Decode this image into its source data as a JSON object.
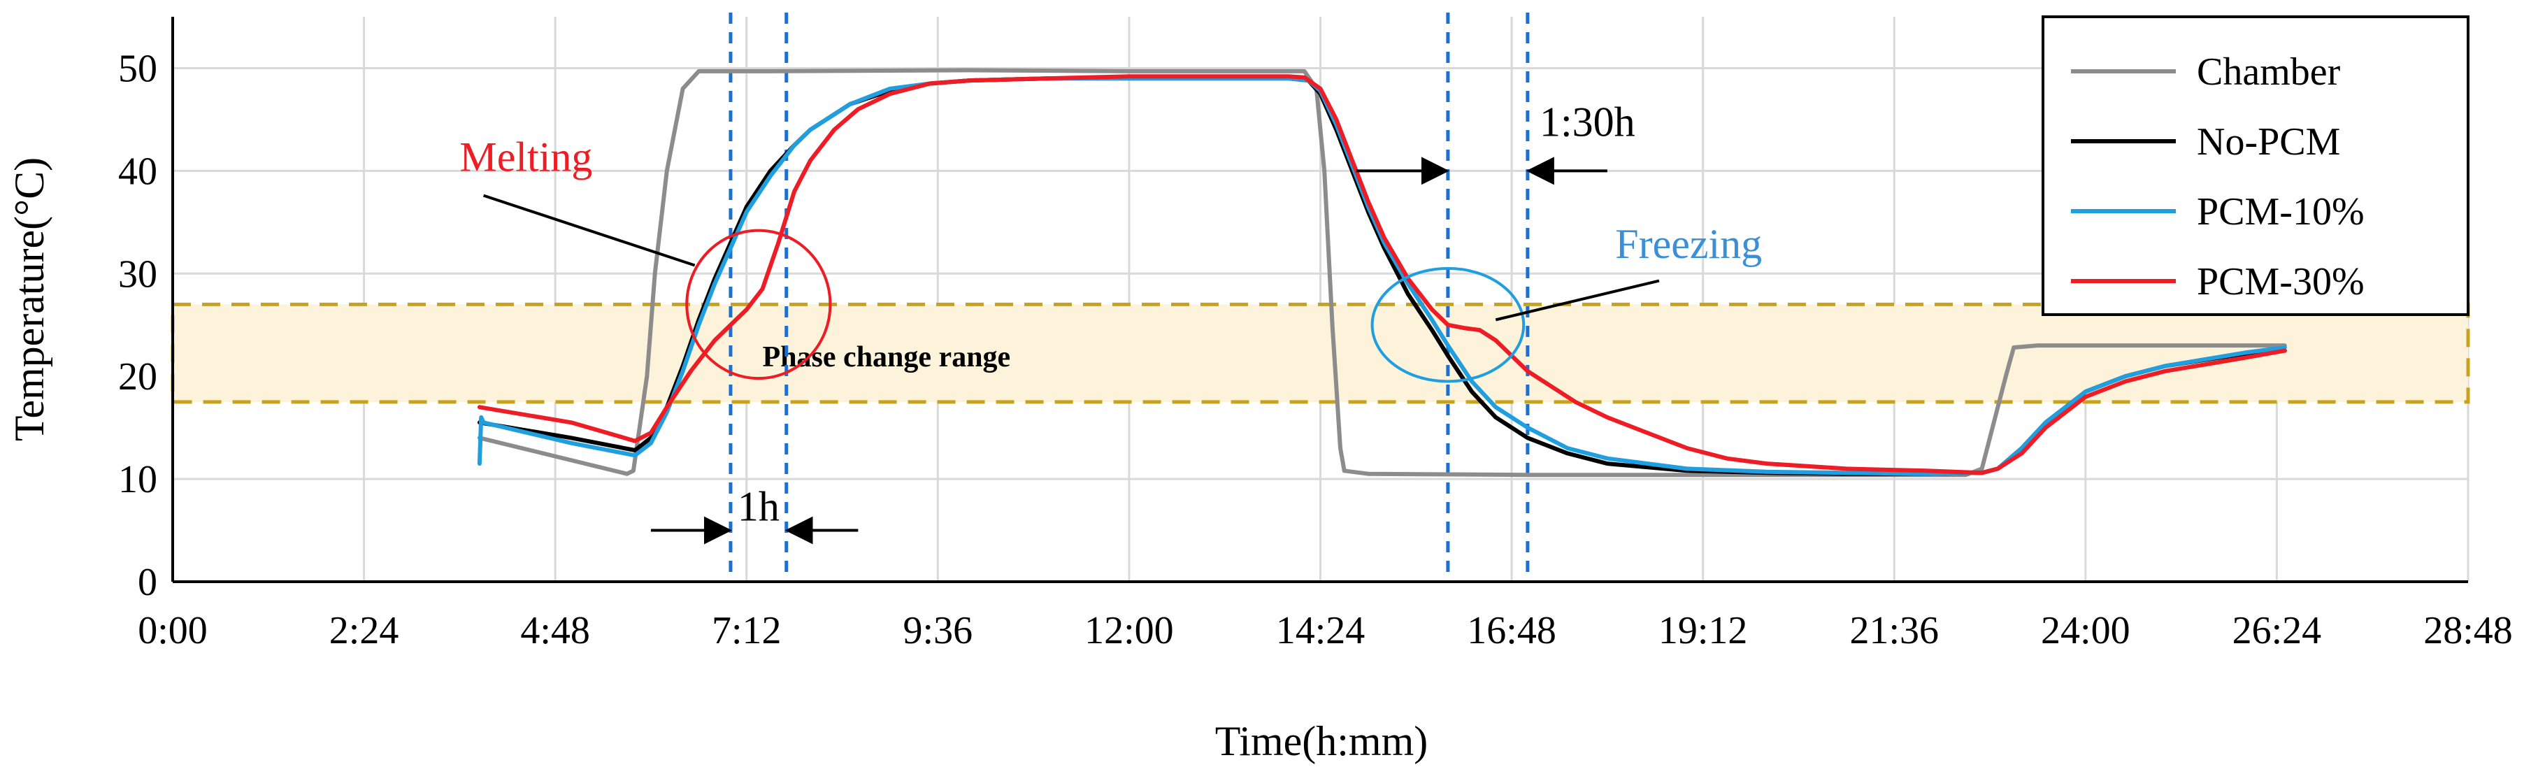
{
  "chart_data": {
    "type": "line",
    "xlabel": "Time(h:mm)",
    "ylabel": "Temperature(°C)",
    "xlim_hours": [
      0,
      28.8
    ],
    "ylim": [
      0,
      55
    ],
    "x_ticks": [
      {
        "value": 0,
        "label": "0:00"
      },
      {
        "value": 2.4,
        "label": "2:24"
      },
      {
        "value": 4.8,
        "label": "4:48"
      },
      {
        "value": 7.2,
        "label": "7:12"
      },
      {
        "value": 9.6,
        "label": "9:36"
      },
      {
        "value": 12.0,
        "label": "12:00"
      },
      {
        "value": 14.4,
        "label": "14:24"
      },
      {
        "value": 16.8,
        "label": "16:48"
      },
      {
        "value": 19.2,
        "label": "19:12"
      },
      {
        "value": 21.6,
        "label": "21:36"
      },
      {
        "value": 24.0,
        "label": "24:00"
      },
      {
        "value": 26.4,
        "label": "26:24"
      },
      {
        "value": 28.8,
        "label": "28:48"
      }
    ],
    "y_ticks": [
      0,
      10,
      20,
      30,
      40,
      50
    ],
    "grid": true,
    "legend_position": "top-right",
    "series": [
      {
        "name": "Chamber",
        "color": "#8c8c8c",
        "x": [
          3.85,
          5.7,
          5.78,
          5.95,
          6.05,
          6.2,
          6.4,
          6.6,
          7.5,
          10,
          12,
          14.2,
          14.35,
          14.45,
          14.55,
          14.65,
          14.7,
          15,
          17,
          20,
          22.5,
          22.7,
          23.0,
          23.1,
          23.4,
          26.5
        ],
        "y": [
          14,
          10.5,
          10.8,
          20,
          30,
          40,
          48,
          49.7,
          49.7,
          49.8,
          49.7,
          49.7,
          48,
          40,
          25,
          13,
          10.8,
          10.5,
          10.4,
          10.4,
          10.4,
          11,
          20,
          22.8,
          23,
          23
        ]
      },
      {
        "name": "No-PCM",
        "color": "#000000",
        "x": [
          3.85,
          5.0,
          5.8,
          6.0,
          6.2,
          6.4,
          6.6,
          6.8,
          7.0,
          7.2,
          7.5,
          7.8,
          8.0,
          8.5,
          9.0,
          9.5,
          10.0,
          11.0,
          12.0,
          13.0,
          14.0,
          14.25,
          14.4,
          14.6,
          14.8,
          15.0,
          15.2,
          15.5,
          15.8,
          16.0,
          16.3,
          16.6,
          17.0,
          17.5,
          18.0,
          19.0,
          20.0,
          21.0,
          22.0,
          22.7,
          22.9,
          23.2,
          23.5,
          24.0,
          24.5,
          25.0,
          26.0,
          26.5
        ],
        "y": [
          15.5,
          14,
          12.8,
          14,
          17,
          21,
          25.5,
          29.5,
          33,
          36.5,
          40,
          42.5,
          44,
          46.5,
          47.8,
          48.5,
          48.8,
          49,
          49,
          49,
          49,
          48.8,
          47.5,
          44,
          40,
          36,
          32.5,
          28,
          24.5,
          22,
          18.5,
          16,
          14,
          12.5,
          11.5,
          10.8,
          10.6,
          10.5,
          10.5,
          10.6,
          11,
          13,
          15.5,
          18.5,
          20,
          21,
          22.2,
          22.5
        ]
      },
      {
        "name": "PCM-10%",
        "color": "#1f9ee0",
        "x": [
          3.85,
          3.87,
          3.9,
          5.0,
          5.8,
          6.0,
          6.2,
          6.4,
          6.6,
          6.8,
          7.0,
          7.2,
          7.5,
          7.8,
          8.0,
          8.5,
          9.0,
          9.5,
          10.0,
          11.0,
          12.0,
          13.0,
          14.0,
          14.25,
          14.4,
          14.6,
          14.8,
          15.0,
          15.2,
          15.5,
          15.8,
          16.0,
          16.3,
          16.6,
          17.0,
          17.5,
          18.0,
          19.0,
          20.0,
          21.0,
          22.0,
          22.7,
          22.9,
          23.2,
          23.5,
          24.0,
          24.5,
          25.0,
          26.0,
          26.5
        ],
        "y": [
          11.5,
          16,
          15.5,
          13.5,
          12.3,
          13.5,
          16.5,
          20.5,
          25,
          29,
          32.5,
          36,
          39.5,
          42.5,
          44,
          46.5,
          48,
          48.5,
          48.8,
          49,
          49,
          49,
          49,
          48.8,
          47.8,
          44.5,
          40.5,
          36.5,
          33,
          29,
          25.5,
          23,
          19.5,
          17,
          15,
          13,
          12,
          11,
          10.7,
          10.6,
          10.5,
          10.6,
          11,
          13,
          15.5,
          18.5,
          20,
          21,
          22.3,
          22.8
        ]
      },
      {
        "name": "PCM-30%",
        "color": "#ee1c25",
        "x": [
          3.85,
          5.0,
          5.8,
          6.0,
          6.2,
          6.5,
          6.8,
          7.0,
          7.2,
          7.4,
          7.6,
          7.8,
          8.0,
          8.3,
          8.6,
          9.0,
          9.5,
          10.0,
          11.0,
          12.0,
          13.0,
          14.0,
          14.2,
          14.4,
          14.6,
          14.8,
          15.0,
          15.2,
          15.5,
          15.8,
          16.0,
          16.2,
          16.4,
          16.6,
          16.8,
          17.0,
          17.3,
          17.6,
          18.0,
          18.5,
          19.0,
          19.5,
          20.0,
          21.0,
          22.0,
          22.7,
          22.9,
          23.2,
          23.5,
          24.0,
          24.5,
          25.0,
          26.0,
          26.5
        ],
        "y": [
          17,
          15.5,
          13.7,
          14.5,
          17,
          20.5,
          23.5,
          25,
          26.5,
          28.5,
          33,
          38,
          41,
          44,
          46,
          47.5,
          48.5,
          48.8,
          49,
          49.2,
          49.2,
          49.2,
          49.1,
          48,
          45,
          41,
          37,
          33.5,
          29.5,
          26.5,
          25,
          24.7,
          24.5,
          23.5,
          22,
          20.5,
          19,
          17.5,
          16,
          14.5,
          13,
          12,
          11.5,
          11,
          10.8,
          10.6,
          11,
          12.5,
          15,
          18,
          19.5,
          20.5,
          21.8,
          22.5
        ]
      }
    ],
    "phase_change_range": {
      "label": "Phase change range",
      "y_low": 17.5,
      "y_high": 27
    },
    "vertical_markers_hours": [
      7.0,
      7.7,
      16.0,
      17.0
    ],
    "annotations": {
      "melting": {
        "label": "Melting",
        "color": "#ee1c25",
        "circle_center": {
          "x": 7.35,
          "y": 27
        },
        "circle_radius_hours": 0.9,
        "circle_radius_c": 7.2,
        "color_circle": "#ee1c25"
      },
      "freezing": {
        "label": "Freezing",
        "color": "#3a8fd6",
        "circle_center": {
          "x": 16.0,
          "y": 25
        },
        "circle_radius_hours": 0.95,
        "circle_radius_c": 5.5,
        "color_circle": "#1f9ee0"
      },
      "delay_melting": {
        "label": "1h"
      },
      "delay_freezing": {
        "label": "1:30h"
      }
    }
  }
}
